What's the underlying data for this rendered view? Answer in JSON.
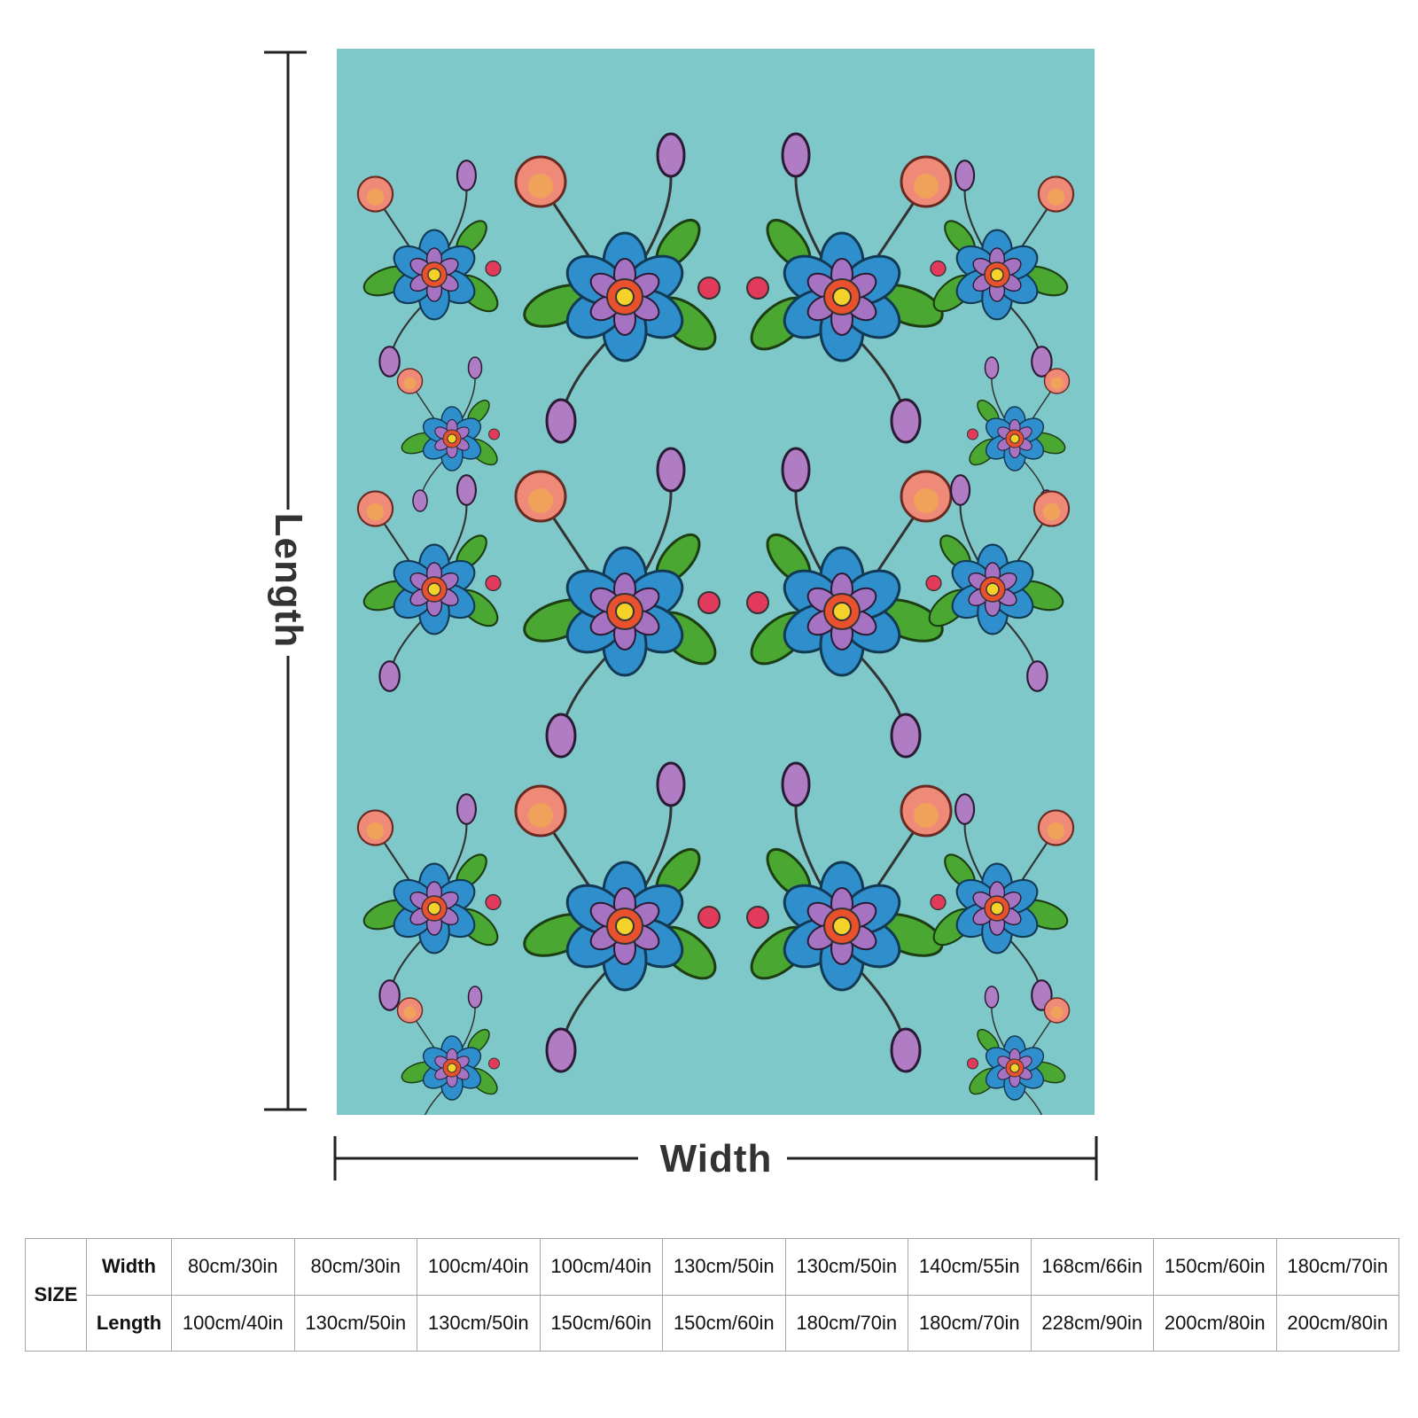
{
  "labels": {
    "length": "Length",
    "width": "Width"
  },
  "table": {
    "size_label": "SIZE",
    "row_headers": [
      "Width",
      "Length"
    ],
    "rows": [
      [
        "80cm/30in",
        "80cm/30in",
        "100cm/40in",
        "100cm/40in",
        "130cm/50in",
        "130cm/50in",
        "140cm/55in",
        "168cm/66in",
        "150cm/60in",
        "180cm/70in"
      ],
      [
        "100cm/40in",
        "130cm/50in",
        "130cm/50in",
        "150cm/60in",
        "150cm/60in",
        "180cm/70in",
        "180cm/70in",
        "228cm/90in",
        "200cm/80in",
        "200cm/80in"
      ]
    ]
  }
}
